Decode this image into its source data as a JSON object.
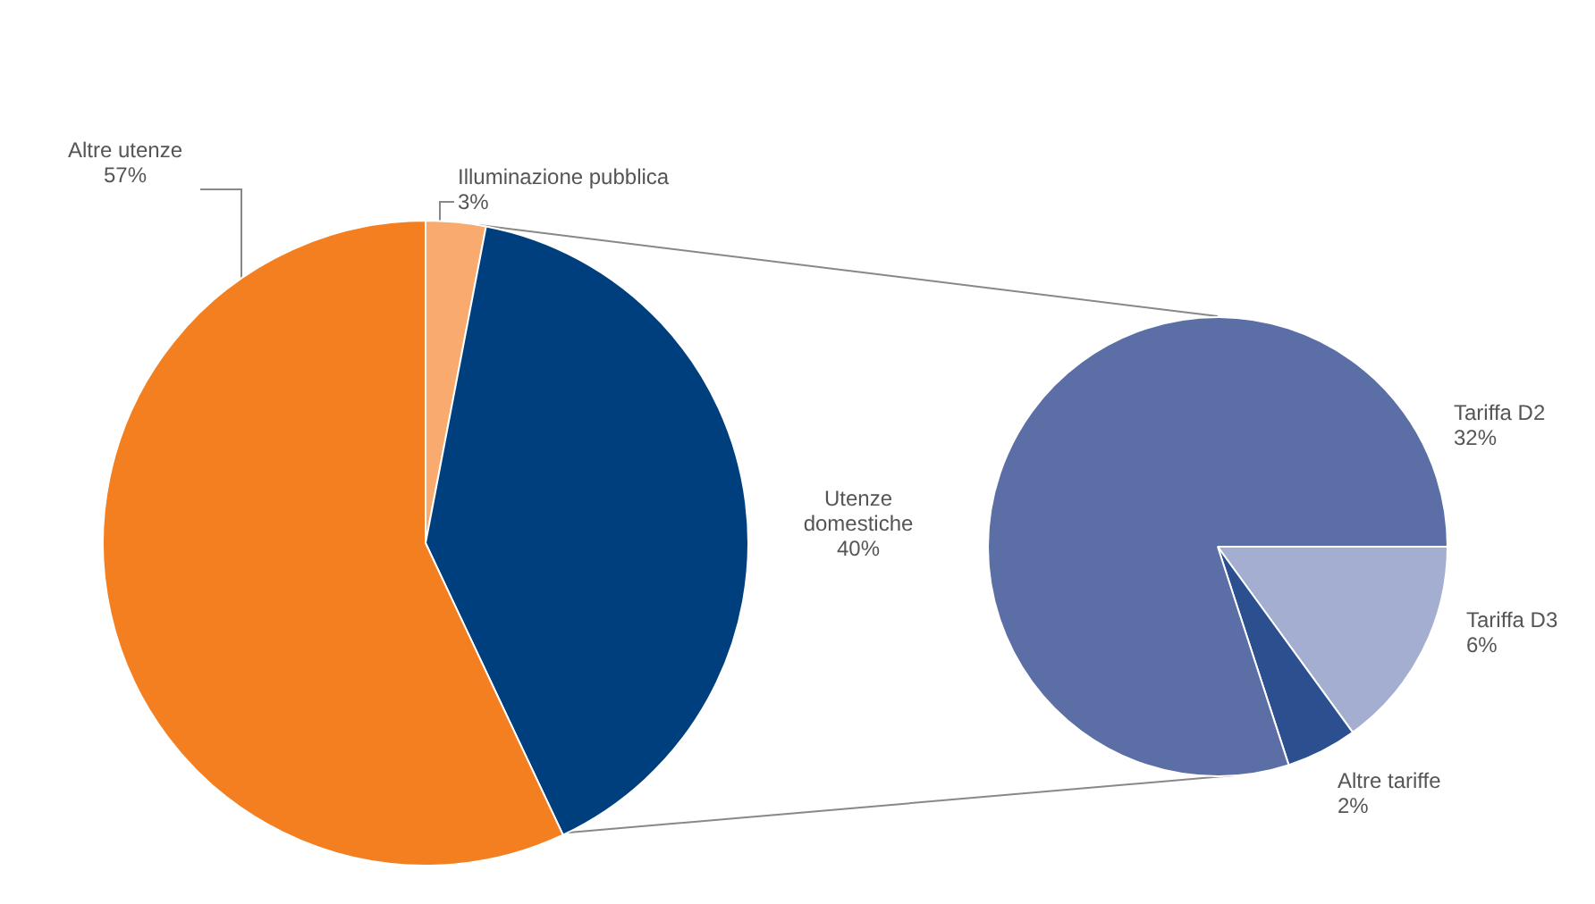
{
  "chart_data": [
    {
      "type": "pie",
      "categories": [
        "Illuminazione pubblica",
        "Utenze domestiche",
        "Altre utenze"
      ],
      "values": [
        3,
        40,
        57
      ],
      "colors": [
        "#f9aa6e",
        "#003f7d",
        "#f47f20"
      ],
      "value_labels": [
        "3%",
        "40%",
        "57%"
      ]
    },
    {
      "type": "pie",
      "categories": [
        "Tariffa D3",
        "Altre tariffe",
        "Tariffa D2"
      ],
      "values": [
        6,
        2,
        32
      ],
      "colors": [
        "#a3aed0",
        "#2c4f8f",
        "#5b6fa6"
      ],
      "value_labels": [
        "6%",
        "2%",
        "32%"
      ]
    }
  ]
}
